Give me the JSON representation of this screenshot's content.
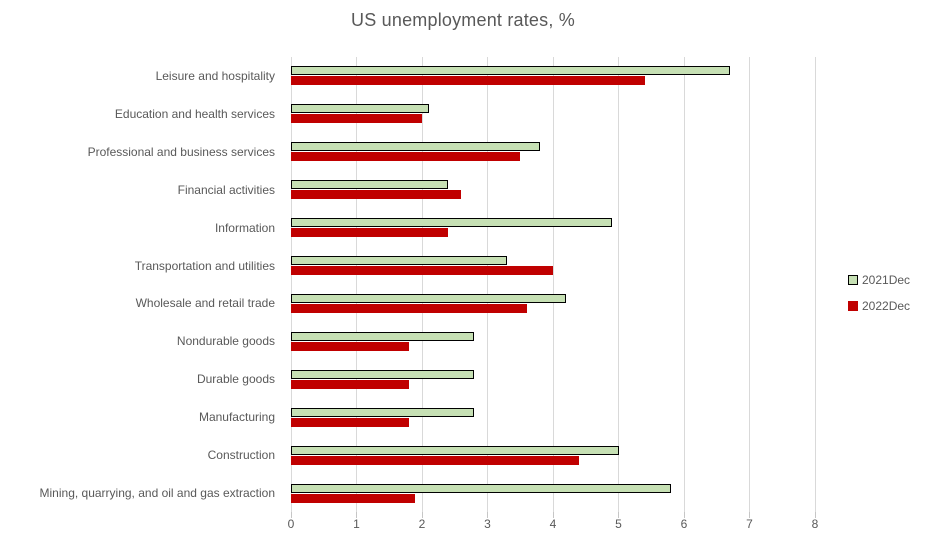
{
  "chart_data": {
    "type": "bar",
    "orientation": "horizontal",
    "title": "US unemployment rates, %",
    "categories": [
      "Leisure and hospitality",
      "Education and health services",
      "Professional and business services",
      "Financial activities",
      "Information",
      "Transportation and utilities",
      "Wholesale and retail trade",
      "Nondurable goods",
      "Durable goods",
      "Manufacturing",
      "Construction",
      "Mining, quarrying, and oil and gas extraction"
    ],
    "series": [
      {
        "name": "2021Dec",
        "color": "#c6e0b4",
        "border_color": "#000000",
        "values": [
          6.7,
          2.1,
          3.8,
          2.4,
          4.9,
          3.3,
          4.2,
          2.8,
          2.8,
          2.8,
          5.0,
          5.8
        ]
      },
      {
        "name": "2022Dec",
        "color": "#c00000",
        "border_color": "",
        "values": [
          5.4,
          2.0,
          3.5,
          2.6,
          2.4,
          4.0,
          3.6,
          1.8,
          1.8,
          1.8,
          4.4,
          1.9
        ]
      }
    ],
    "xlim": [
      0,
      8
    ],
    "x_ticks": [
      "0",
      "1",
      "2",
      "3",
      "4",
      "5",
      "6",
      "7",
      "8"
    ],
    "grid": "vertical",
    "legend_position": "right",
    "colors": {
      "title_text": "#595959",
      "label_text": "#595959",
      "axis_text": "#595959",
      "gridline": "#d9d9d9",
      "tick_mark": "#c6c6c6",
      "background": "#ffffff"
    }
  }
}
